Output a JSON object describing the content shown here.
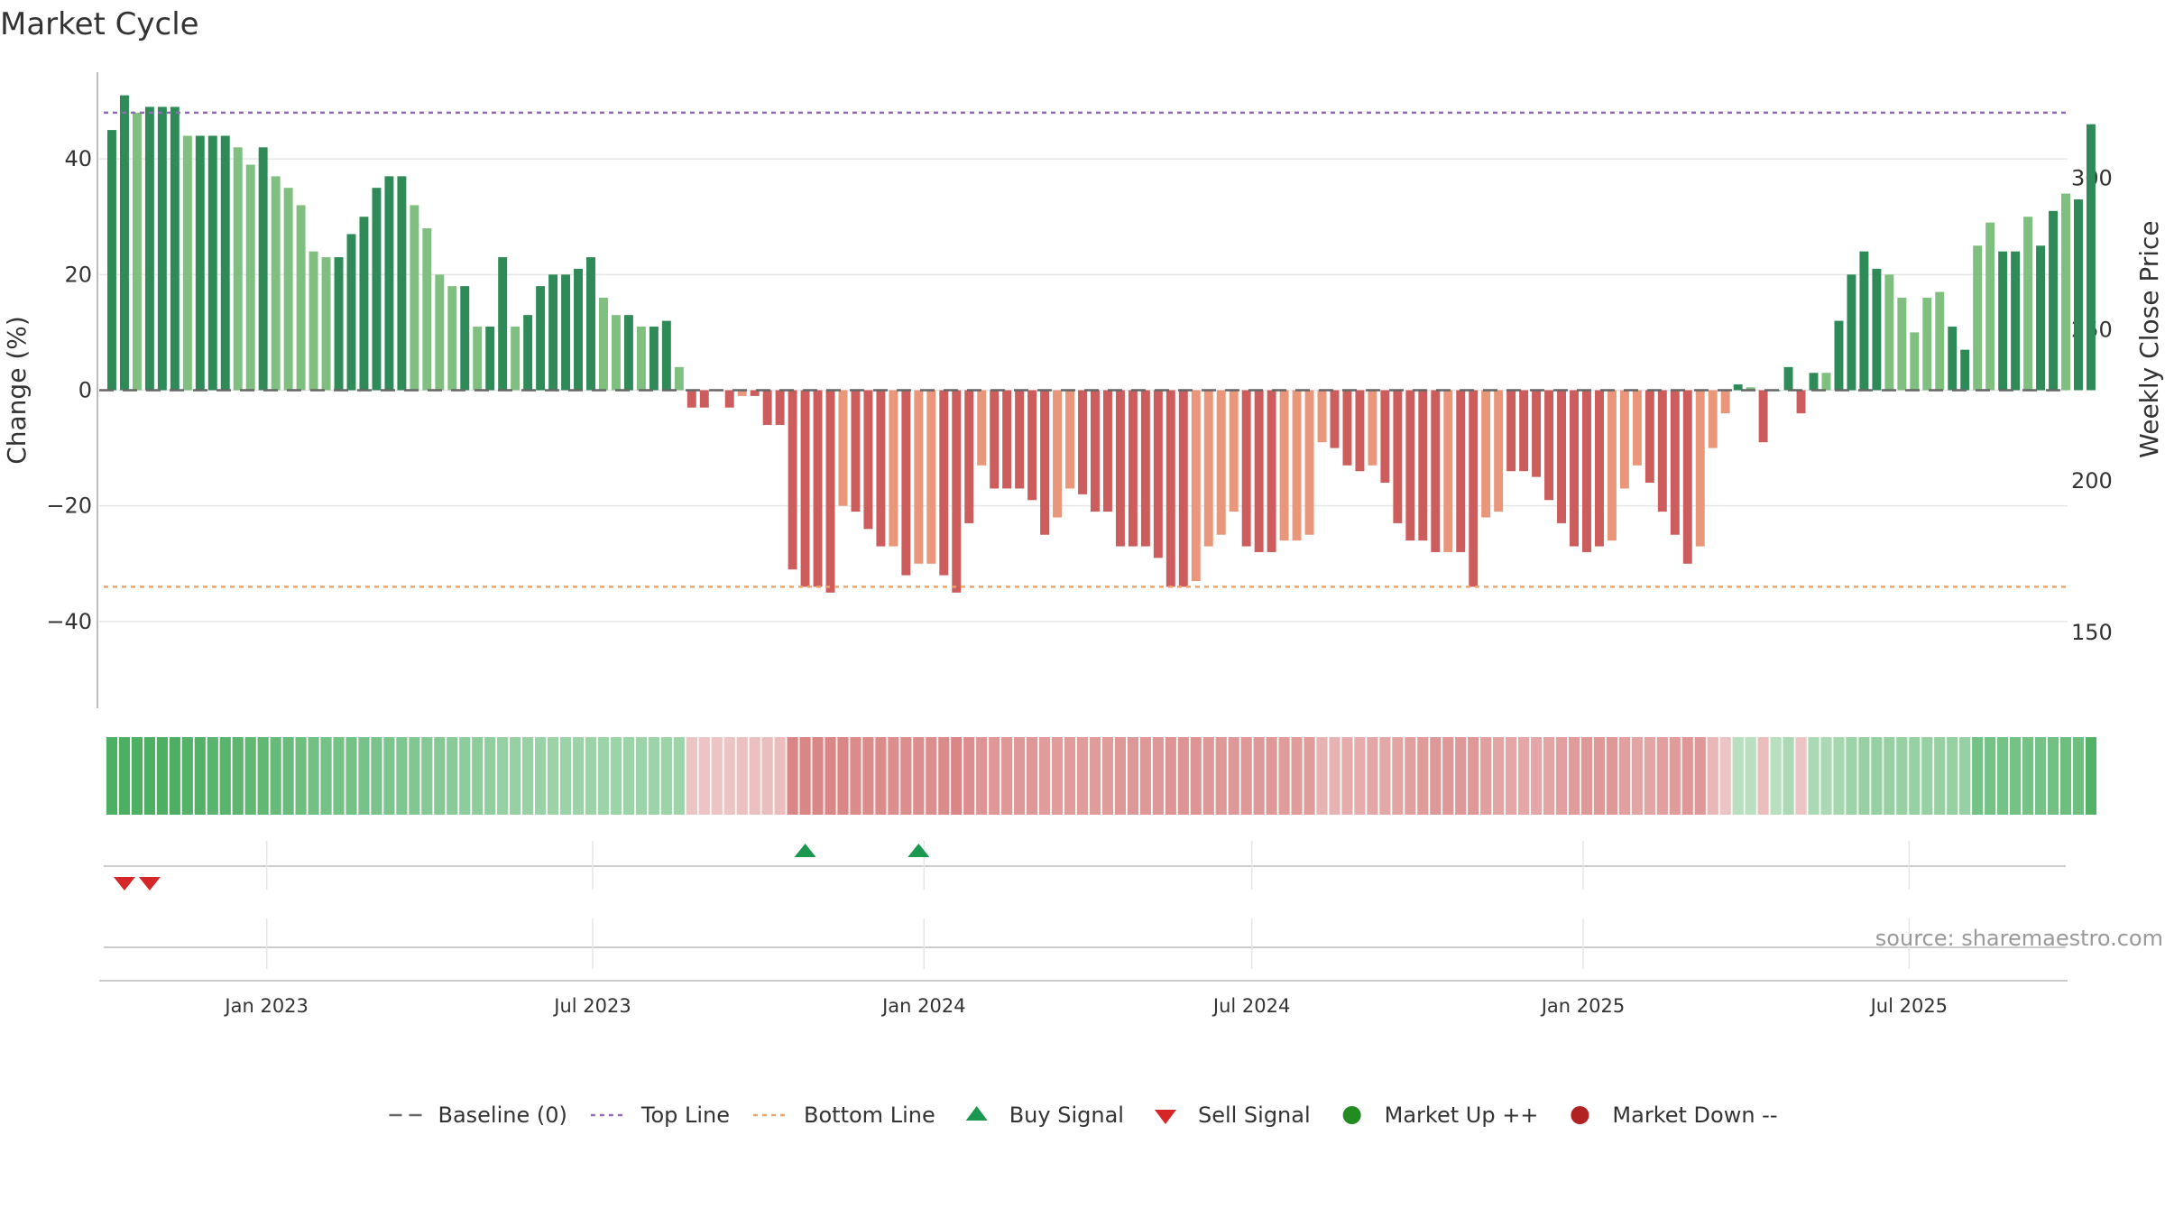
{
  "chart_data": {
    "type": "bar",
    "title": "Market Cycle",
    "ylabel": "Change (%)",
    "y2label": "Weekly Close Price",
    "ylim": [
      -55,
      55
    ],
    "yticks": [
      40,
      20,
      0,
      -20,
      -40
    ],
    "y2lim": [
      125,
      335
    ],
    "y2ticks": [
      300,
      250,
      200,
      150
    ],
    "xrange": [
      "2022-09-30",
      "2025-09-26"
    ],
    "x_ticks": [
      {
        "date": "2023-01-01",
        "label": "Jan 2023"
      },
      {
        "date": "2023-07-01",
        "label": "Jul 2023"
      },
      {
        "date": "2024-01-01",
        "label": "Jan 2024"
      },
      {
        "date": "2024-07-01",
        "label": "Jul 2024"
      },
      {
        "date": "2025-01-01",
        "label": "Jan 2025"
      },
      {
        "date": "2025-07-01",
        "label": "Jul 2025"
      }
    ],
    "start_date": "2022-10-07",
    "week_step_days": 7,
    "values": [
      45,
      51,
      48,
      49,
      49,
      49,
      44,
      44,
      44,
      44,
      42,
      39,
      42,
      37,
      35,
      32,
      24,
      23,
      23,
      27,
      30,
      35,
      37,
      37,
      32,
      28,
      20,
      18,
      18,
      11,
      11,
      23,
      11,
      13,
      18,
      20,
      20,
      21,
      23,
      16,
      13,
      13,
      11,
      11,
      12,
      4,
      -3,
      -3,
      0,
      -3,
      -1,
      -1,
      -6,
      -6,
      -31,
      -34,
      -34,
      -35,
      -20,
      -21,
      -24,
      -27,
      -27,
      -32,
      -30,
      -30,
      -32,
      -35,
      -23,
      -13,
      -17,
      -17,
      -17,
      -19,
      -25,
      -22,
      -17,
      -18,
      -21,
      -21,
      -27,
      -27,
      -27,
      -29,
      -34,
      -34,
      -33,
      -27,
      -25,
      -21,
      -27,
      -28,
      -28,
      -26,
      -26,
      -25,
      -9,
      -10,
      -13,
      -14,
      -13,
      -16,
      -23,
      -26,
      -26,
      -28,
      -28,
      -28,
      -34,
      -22,
      -21,
      -14,
      -14,
      -15,
      -19,
      -23,
      -27,
      -28,
      -27,
      -26,
      -17,
      -13,
      -16,
      -21,
      -25,
      -30,
      -27,
      -10,
      -4,
      1,
      0.5,
      -9,
      0,
      4,
      -4,
      3,
      3,
      12,
      20,
      24,
      21,
      20,
      16,
      10,
      16,
      17,
      11,
      7,
      25,
      29,
      24,
      24,
      30,
      25,
      31,
      34,
      33,
      46
    ],
    "shades": [
      0,
      0,
      1,
      0,
      0,
      0,
      1,
      0,
      0,
      0,
      1,
      1,
      0,
      1,
      1,
      1,
      1,
      1,
      0,
      0,
      0,
      0,
      0,
      0,
      1,
      1,
      1,
      1,
      0,
      1,
      0,
      0,
      1,
      0,
      0,
      0,
      0,
      0,
      0,
      1,
      1,
      0,
      1,
      0,
      0,
      1,
      0,
      0,
      0,
      0,
      1,
      0,
      0,
      0,
      0,
      0,
      0,
      0,
      1,
      0,
      0,
      0,
      1,
      0,
      1,
      1,
      0,
      0,
      0,
      1,
      0,
      0,
      0,
      0,
      0,
      1,
      1,
      0,
      0,
      0,
      0,
      0,
      0,
      0,
      0,
      0,
      1,
      1,
      1,
      1,
      0,
      0,
      0,
      1,
      1,
      1,
      1,
      0,
      0,
      0,
      1,
      0,
      0,
      0,
      0,
      0,
      1,
      0,
      0,
      1,
      1,
      0,
      0,
      0,
      0,
      0,
      0,
      0,
      0,
      1,
      1,
      1,
      0,
      0,
      0,
      0,
      1,
      1,
      1,
      0,
      1,
      0,
      0,
      0,
      0,
      0,
      1,
      0,
      0,
      0,
      0,
      1,
      1,
      1,
      1,
      1,
      0,
      0,
      1,
      1,
      0,
      0,
      1,
      0,
      0,
      1,
      0,
      0,
      1,
      0
    ],
    "colors": {
      "up_strong": "#2e8b57",
      "up_light": "#7fbf7f",
      "down_strong": "#cd5c5c",
      "down_light": "#e9967a",
      "top_line": "#9467bd",
      "bottom_line": "#f4a261",
      "baseline": "#666666",
      "buy": "#1a9850",
      "sell": "#d62728",
      "market_up": "#228b22",
      "market_down": "#b22222",
      "heat_up": "#4caf62",
      "heat_down": "#cd5c5c"
    },
    "top_line": 48,
    "bottom_line": -34,
    "heat_levels": [
      1,
      1,
      1,
      1,
      1,
      1,
      0.95,
      0.95,
      0.9,
      0.9,
      0.88,
      0.85,
      0.85,
      0.8,
      0.78,
      0.75,
      0.72,
      0.7,
      0.7,
      0.7,
      0.68,
      0.66,
      0.64,
      0.62,
      0.6,
      0.58,
      0.56,
      0.54,
      0.52,
      0.5,
      0.48,
      0.46,
      0.45,
      0.44,
      0.43,
      0.42,
      0.42,
      0.41,
      0.4,
      0.4,
      0.4,
      0.4,
      0.4,
      0.4,
      0.4,
      0.4,
      -0.15,
      -0.15,
      -0.15,
      -0.15,
      -0.18,
      -0.18,
      -0.2,
      -0.2,
      -0.65,
      -0.65,
      -0.65,
      -0.65,
      -0.65,
      -0.62,
      -0.62,
      -0.62,
      -0.6,
      -0.6,
      -0.6,
      -0.6,
      -0.62,
      -0.65,
      -0.6,
      -0.55,
      -0.5,
      -0.5,
      -0.5,
      -0.5,
      -0.48,
      -0.48,
      -0.48,
      -0.48,
      -0.48,
      -0.48,
      -0.5,
      -0.5,
      -0.5,
      -0.5,
      -0.55,
      -0.55,
      -0.55,
      -0.52,
      -0.5,
      -0.5,
      -0.5,
      -0.5,
      -0.5,
      -0.48,
      -0.48,
      -0.48,
      -0.3,
      -0.3,
      -0.35,
      -0.35,
      -0.38,
      -0.38,
      -0.42,
      -0.45,
      -0.48,
      -0.5,
      -0.5,
      -0.5,
      -0.52,
      -0.45,
      -0.42,
      -0.4,
      -0.4,
      -0.4,
      -0.42,
      -0.45,
      -0.48,
      -0.5,
      -0.5,
      -0.5,
      -0.45,
      -0.42,
      -0.42,
      -0.45,
      -0.48,
      -0.52,
      -0.52,
      -0.25,
      -0.15,
      0.2,
      0.2,
      -0.2,
      0.2,
      0.3,
      -0.15,
      0.3,
      0.3,
      0.35,
      0.4,
      0.45,
      0.45,
      0.45,
      0.45,
      0.45,
      0.45,
      0.45,
      0.45,
      0.45,
      0.7,
      0.7,
      0.7,
      0.7,
      0.7,
      0.7,
      0.72,
      0.75,
      0.75,
      0.95
    ],
    "buy_signals": [
      "2023-10-27",
      "2023-12-29"
    ],
    "sell_signals": [
      "2022-10-14",
      "2022-10-28"
    ],
    "legend": [
      {
        "key": "baseline",
        "label": "Baseline (0)"
      },
      {
        "key": "top",
        "label": "Top Line"
      },
      {
        "key": "bottom",
        "label": "Bottom Line"
      },
      {
        "key": "buy",
        "label": "Buy Signal"
      },
      {
        "key": "sell",
        "label": "Sell Signal"
      },
      {
        "key": "up",
        "label": "Market Up ++"
      },
      {
        "key": "down",
        "label": "Market Down --"
      }
    ],
    "legend_position": "bottom-center",
    "source": "source: sharemaestro.com",
    "grid": true
  }
}
